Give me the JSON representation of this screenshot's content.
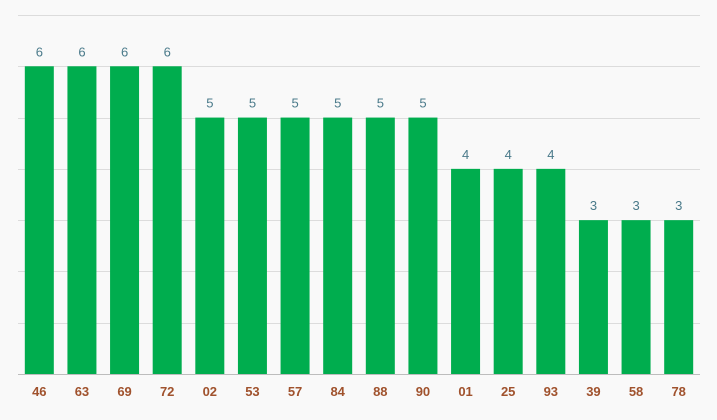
{
  "chart_data": {
    "type": "bar",
    "title": "",
    "xlabel": "",
    "ylabel": "",
    "categories": [
      "46",
      "63",
      "69",
      "72",
      "02",
      "53",
      "57",
      "84",
      "88",
      "90",
      "01",
      "25",
      "93",
      "39",
      "58",
      "78"
    ],
    "values": [
      6,
      6,
      6,
      6,
      5,
      5,
      5,
      5,
      5,
      5,
      4,
      4,
      4,
      3,
      3,
      3
    ],
    "ylim": [
      0,
      7
    ],
    "grid": true,
    "legend": "none",
    "colors": {
      "bar": "#00ad4e",
      "value_label": "#4a7a8a",
      "tick_label": "#a0522d",
      "grid": "#dcdcdc",
      "axis": "#bdbdbd",
      "background": "#f9f9f9"
    }
  }
}
